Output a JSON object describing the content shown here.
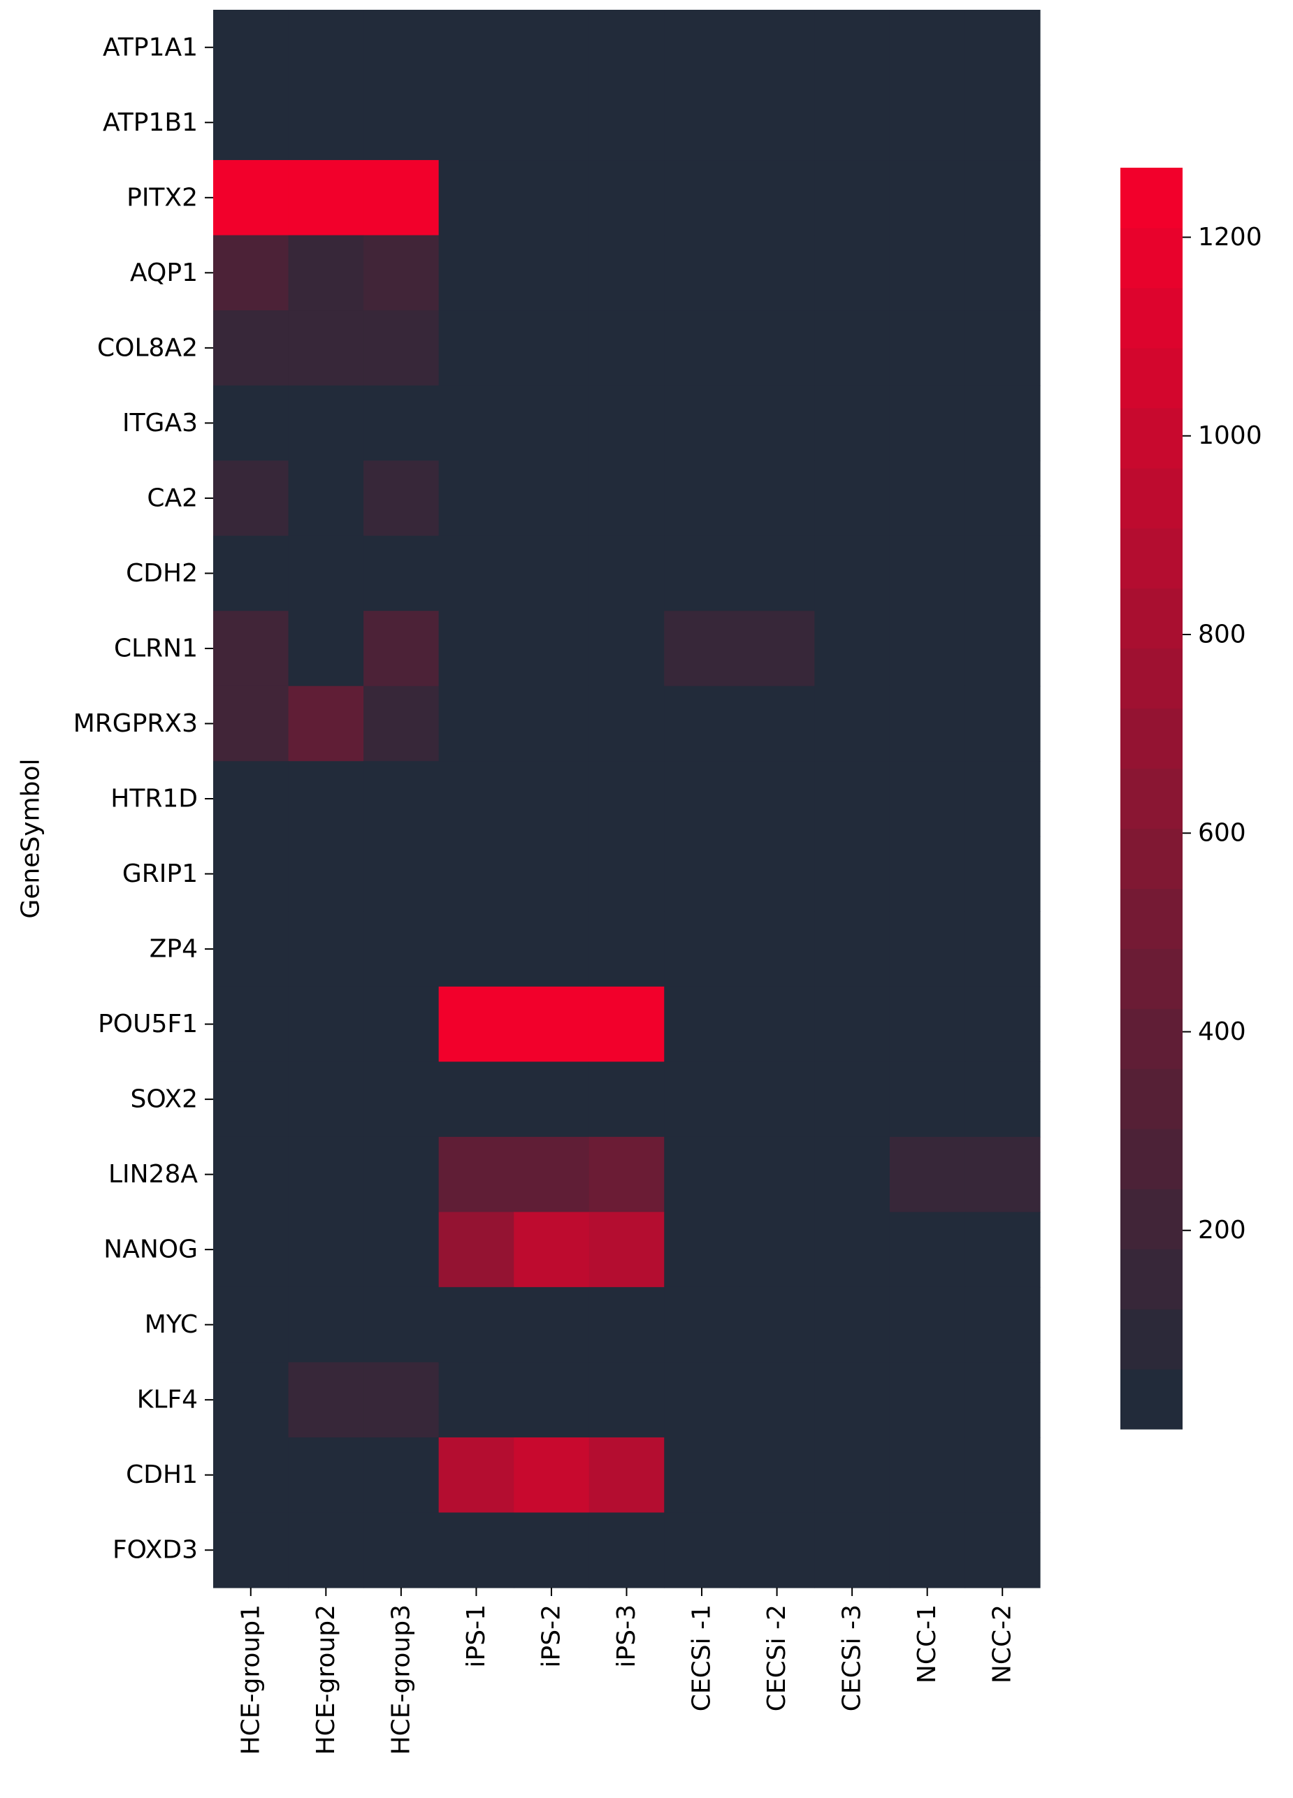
{
  "chart_data": {
    "type": "heatmap",
    "title": "",
    "xlabel": "",
    "ylabel": "GeneSymbol",
    "columns": [
      "HCE-group1",
      "HCE-group2",
      "HCE-group3",
      "iPS-1",
      "iPS-2",
      "iPS-3",
      "CECSi -1",
      "CECSi -2",
      "CECSi -3",
      "NCC-1",
      "NCC-2"
    ],
    "rows": [
      "ATP1A1",
      "ATP1B1",
      "PITX2",
      "AQP1",
      "COL8A2",
      "ITGA3",
      "CA2",
      "CDH2",
      "CLRN1",
      "MRGPRX3",
      "HTR1D",
      "GRIP1",
      "ZP4",
      "POU5F1",
      "SOX2",
      "LIN28A",
      "NANOG",
      "MYC",
      "KLF4",
      "CDH1",
      "FOXD3"
    ],
    "values": [
      [
        0,
        0,
        0,
        0,
        0,
        0,
        0,
        0,
        0,
        0,
        0
      ],
      [
        0,
        0,
        0,
        0,
        0,
        0,
        0,
        0,
        0,
        0,
        0
      ],
      [
        1270,
        1270,
        1270,
        0,
        0,
        0,
        60,
        0,
        60,
        0,
        0
      ],
      [
        300,
        140,
        220,
        0,
        0,
        0,
        60,
        0,
        60,
        0,
        0
      ],
      [
        150,
        150,
        150,
        0,
        0,
        0,
        0,
        0,
        0,
        0,
        0
      ],
      [
        0,
        0,
        0,
        0,
        0,
        0,
        0,
        0,
        0,
        0,
        0
      ],
      [
        160,
        40,
        160,
        0,
        0,
        0,
        0,
        0,
        0,
        0,
        0
      ],
      [
        0,
        0,
        0,
        0,
        0,
        0,
        0,
        0,
        0,
        0,
        0
      ],
      [
        210,
        40,
        250,
        0,
        0,
        0,
        180,
        180,
        60,
        0,
        0
      ],
      [
        210,
        380,
        150,
        0,
        0,
        0,
        0,
        0,
        0,
        0,
        0
      ],
      [
        0,
        0,
        0,
        0,
        0,
        0,
        0,
        0,
        0,
        0,
        0
      ],
      [
        0,
        0,
        0,
        0,
        0,
        0,
        0,
        0,
        0,
        0,
        0
      ],
      [
        60,
        60,
        60,
        0,
        0,
        0,
        0,
        0,
        0,
        0,
        0
      ],
      [
        0,
        0,
        0,
        1270,
        1270,
        1270,
        0,
        0,
        0,
        0,
        0
      ],
      [
        0,
        0,
        0,
        0,
        0,
        0,
        0,
        0,
        0,
        0,
        0
      ],
      [
        0,
        0,
        0,
        380,
        420,
        450,
        0,
        0,
        0,
        180,
        180
      ],
      [
        0,
        0,
        0,
        720,
        920,
        860,
        0,
        0,
        0,
        0,
        0
      ],
      [
        0,
        0,
        0,
        0,
        0,
        0,
        0,
        0,
        0,
        0,
        0
      ],
      [
        60,
        180,
        180,
        0,
        0,
        0,
        0,
        0,
        0,
        0,
        0
      ],
      [
        0,
        0,
        0,
        880,
        1020,
        900,
        0,
        0,
        0,
        0,
        0
      ],
      [
        0,
        0,
        0,
        60,
        60,
        60,
        0,
        0,
        0,
        0,
        0
      ]
    ],
    "colorbar": {
      "min": 0,
      "max": 1270,
      "ticks": [
        200,
        400,
        600,
        800,
        1000,
        1200
      ],
      "color_low": "#222B3A",
      "color_high": "#F2002B",
      "levels": 21
    },
    "grid": false,
    "legend": "colorbar-right"
  }
}
